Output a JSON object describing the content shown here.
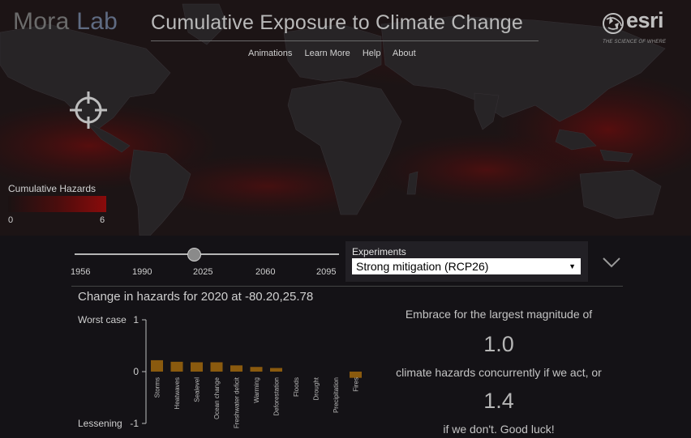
{
  "header": {
    "brand_primary": "Mora",
    "brand_secondary": "Lab",
    "title": "Cumulative Exposure to Climate Change",
    "nav": [
      "Animations",
      "Learn More",
      "Help",
      "About"
    ],
    "esri_wordmark": "esri",
    "esri_tagline": "THE SCIENCE OF WHERE",
    "esri_icon": "globe-icon"
  },
  "map": {
    "locate_icon": "crosshair-icon",
    "legend": {
      "title": "Cumulative Hazards",
      "min": "0",
      "max": "6"
    },
    "colors": {
      "land": "#272426",
      "ocean": "#1b1516",
      "hazard": "#8a0b0b"
    }
  },
  "controls": {
    "year_ticks": [
      "1956",
      "1990",
      "2025",
      "2060",
      "2095"
    ],
    "experiments_label": "Experiments",
    "experiment_selected": "Strong mitigation (RCP26)",
    "dropdown_icon": "chevron-down-icon"
  },
  "chart_title": "Change in hazards for 2020 at -80.20,25.78",
  "chart_data": {
    "type": "bar",
    "categories": [
      "Storms",
      "Heatwaves",
      "Sealevel",
      "Ocean change",
      "Freshwater deficit",
      "Warming",
      "Deforestation",
      "Floods",
      "Drought",
      "Precipitation",
      "Fires"
    ],
    "values": [
      0.22,
      0.19,
      0.18,
      0.18,
      0.12,
      0.09,
      0.07,
      0,
      0,
      0,
      -0.12
    ],
    "ylim": [
      -1,
      1
    ],
    "ytick_labels": {
      "top": "1",
      "mid": "0",
      "bottom": "-1"
    },
    "yaxis_labels": {
      "top": "Worst case",
      "bottom": "Lessening"
    },
    "bar_color": "#8a5a0e",
    "grid": false
  },
  "message": {
    "line1": "Embrace for the largest magnitude of",
    "value_act": "1.0",
    "line2": "climate hazards concurrently if we act, or",
    "value_noact": "1.4",
    "line3": "if we don't. Good luck!"
  }
}
